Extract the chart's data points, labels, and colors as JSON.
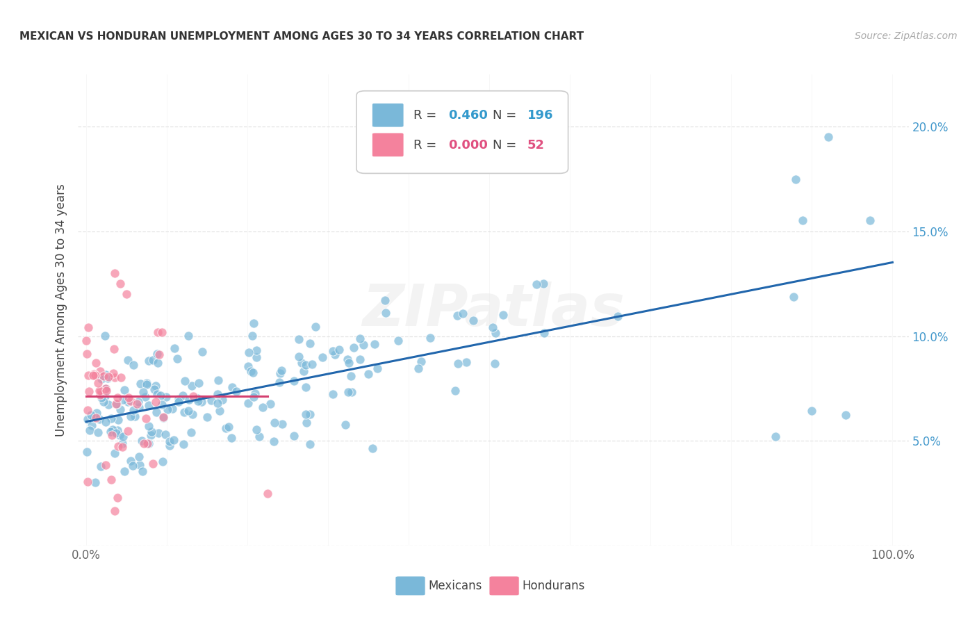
{
  "title": "MEXICAN VS HONDURAN UNEMPLOYMENT AMONG AGES 30 TO 34 YEARS CORRELATION CHART",
  "source": "Source: ZipAtlas.com",
  "ylabel": "Unemployment Among Ages 30 to 34 years",
  "xlim": [
    -0.01,
    1.02
  ],
  "ylim": [
    0.0,
    0.225
  ],
  "x_ticks": [
    0.0,
    0.1,
    0.2,
    0.3,
    0.4,
    0.5,
    0.6,
    0.7,
    0.8,
    0.9,
    1.0
  ],
  "x_tick_labels": [
    "0.0%",
    "",
    "",
    "",
    "",
    "",
    "",
    "",
    "",
    "",
    "100.0%"
  ],
  "y_ticks": [
    0.0,
    0.05,
    0.1,
    0.15,
    0.2
  ],
  "y_tick_labels_right": [
    "",
    "5.0%",
    "10.0%",
    "15.0%",
    "20.0%"
  ],
  "mexican_color": "#7ab8d9",
  "honduran_color": "#f4829d",
  "trendline_mexican_color": "#2166ac",
  "trendline_honduran_color": "#d44070",
  "watermark": "ZIPatlas",
  "watermark_color": "#dddddd",
  "legend_r_mexican": "0.460",
  "legend_n_mexican": "196",
  "legend_r_honduran": "0.000",
  "legend_n_honduran": "52",
  "legend_value_color_mex": "#3399cc",
  "legend_value_color_hon": "#e05080",
  "grid_color": "#dddddd",
  "title_color": "#333333",
  "source_color": "#aaaaaa",
  "ylabel_color": "#444444",
  "tick_color": "#666666",
  "right_tick_color": "#4499cc"
}
